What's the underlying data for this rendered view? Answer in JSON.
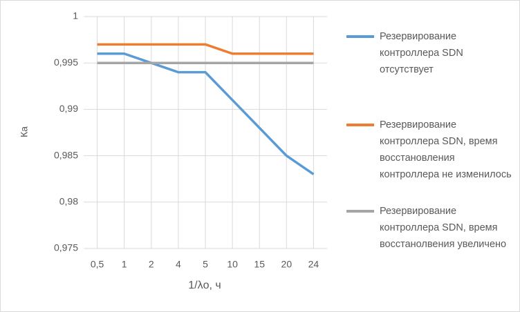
{
  "chart_data": {
    "type": "line",
    "x_label": "1/λо, ч",
    "y_label": "Ка",
    "categories": [
      "0,5",
      "1",
      "2",
      "4",
      "5",
      "10",
      "15",
      "20",
      "24"
    ],
    "series": [
      {
        "name": "Резервирование контроллера SDN отсутствует",
        "color": "#5b9bd5",
        "values": [
          0.996,
          0.996,
          0.995,
          0.994,
          0.994,
          0.991,
          0.988,
          0.985,
          0.983
        ]
      },
      {
        "name": "Резервирование контроллера SDN, время восстановления контроллера не изменилось",
        "color": "#ed7d31",
        "values": [
          0.997,
          0.997,
          0.997,
          0.997,
          0.997,
          0.996,
          0.996,
          0.996,
          0.996
        ]
      },
      {
        "name": "Резервирование контроллера SDN, время восстанолвения увеличено",
        "color": "#a5a5a5",
        "values": [
          0.995,
          0.995,
          0.995,
          0.995,
          0.995,
          0.995,
          0.995,
          0.995,
          0.995
        ]
      }
    ],
    "ylim": [
      0.975,
      1
    ],
    "yticks": [
      {
        "value": 0.975,
        "label": "0,975"
      },
      {
        "value": 0.98,
        "label": "0,98"
      },
      {
        "value": 0.985,
        "label": "0,985"
      },
      {
        "value": 0.99,
        "label": "0,99"
      },
      {
        "value": 0.995,
        "label": "0,995"
      },
      1
    ],
    "grid": true,
    "legend": "right"
  }
}
